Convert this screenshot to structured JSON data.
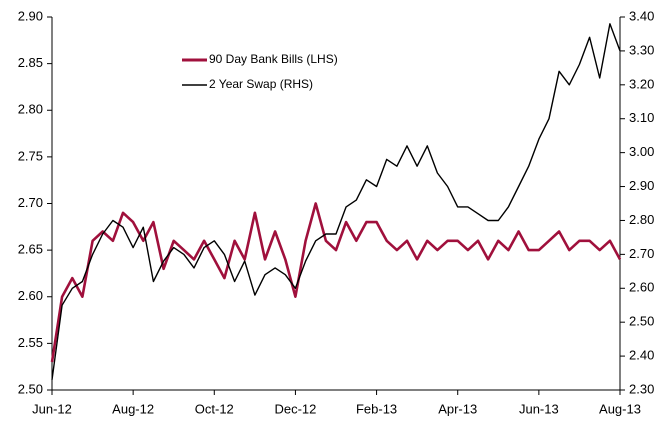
{
  "chart_data": {
    "type": "line",
    "categories": [
      "Jun-12",
      null,
      null,
      null,
      null,
      null,
      null,
      null,
      "Aug-12",
      null,
      null,
      null,
      null,
      null,
      null,
      null,
      "Oct-12",
      null,
      null,
      null,
      null,
      null,
      null,
      null,
      "Dec-12",
      null,
      null,
      null,
      null,
      null,
      null,
      null,
      "Feb-13",
      null,
      null,
      null,
      null,
      null,
      null,
      null,
      "Apr-13",
      null,
      null,
      null,
      null,
      null,
      null,
      null,
      "Jun-13",
      null,
      null,
      null,
      null,
      null,
      null,
      null,
      "Aug-13"
    ],
    "series": [
      {
        "name": "90 Day Bank Bills (LHS)",
        "color": "#a0103c",
        "axis": "y",
        "values": [
          2.53,
          2.6,
          2.62,
          2.6,
          2.66,
          2.67,
          2.66,
          2.69,
          2.68,
          2.66,
          2.68,
          2.63,
          2.66,
          2.65,
          2.64,
          2.66,
          2.64,
          2.62,
          2.66,
          2.64,
          2.69,
          2.64,
          2.67,
          2.64,
          2.6,
          2.66,
          2.7,
          2.66,
          2.65,
          2.68,
          2.66,
          2.68,
          2.68,
          2.66,
          2.65,
          2.66,
          2.64,
          2.66,
          2.65,
          2.66,
          2.66,
          2.65,
          2.66,
          2.64,
          2.66,
          2.65,
          2.67,
          2.65,
          2.65,
          2.66,
          2.67,
          2.65,
          2.66,
          2.66,
          2.65,
          2.66,
          2.64
        ]
      },
      {
        "name": "2 Year Swap (RHS)",
        "color": "#000000",
        "axis": "y2",
        "values": [
          2.33,
          2.55,
          2.6,
          2.62,
          2.7,
          2.76,
          2.8,
          2.78,
          2.72,
          2.78,
          2.62,
          2.68,
          2.72,
          2.7,
          2.66,
          2.72,
          2.74,
          2.7,
          2.62,
          2.68,
          2.58,
          2.64,
          2.66,
          2.64,
          2.6,
          2.68,
          2.74,
          2.76,
          2.76,
          2.84,
          2.86,
          2.92,
          2.9,
          2.98,
          2.96,
          3.02,
          2.96,
          3.02,
          2.94,
          2.9,
          2.84,
          2.84,
          2.82,
          2.8,
          2.8,
          2.84,
          2.9,
          2.96,
          3.04,
          3.1,
          3.24,
          3.2,
          3.26,
          3.34,
          3.22,
          3.38,
          3.3
        ]
      }
    ],
    "ylim": [
      2.5,
      2.9
    ],
    "yticks": [
      {
        "value": 2.5,
        "label": "2.50"
      },
      {
        "value": 2.55,
        "label": "2.55"
      },
      {
        "value": 2.6,
        "label": "2.60"
      },
      {
        "value": 2.65,
        "label": "2.65"
      },
      {
        "value": 2.7,
        "label": "2.70"
      },
      {
        "value": 2.75,
        "label": "2.75"
      },
      {
        "value": 2.8,
        "label": "2.80"
      },
      {
        "value": 2.85,
        "label": "2.85"
      },
      {
        "value": 2.9,
        "label": "2.90"
      }
    ],
    "y2lim": [
      2.3,
      3.4
    ],
    "y2ticks": [
      {
        "value": 2.3,
        "label": "2.30"
      },
      {
        "value": 2.4,
        "label": "2.40"
      },
      {
        "value": 2.5,
        "label": "2.50"
      },
      {
        "value": 2.6,
        "label": "2.60"
      },
      {
        "value": 2.7,
        "label": "2.70"
      },
      {
        "value": 2.8,
        "label": "2.80"
      },
      {
        "value": 2.9,
        "label": "2.90"
      },
      {
        "value": 3.0,
        "label": "3.00"
      },
      {
        "value": 3.1,
        "label": "3.10"
      },
      {
        "value": 3.2,
        "label": "3.20"
      },
      {
        "value": 3.3,
        "label": "3.30"
      },
      {
        "value": 3.4,
        "label": "3.40"
      }
    ],
    "legend": "upper left",
    "grid": false
  }
}
